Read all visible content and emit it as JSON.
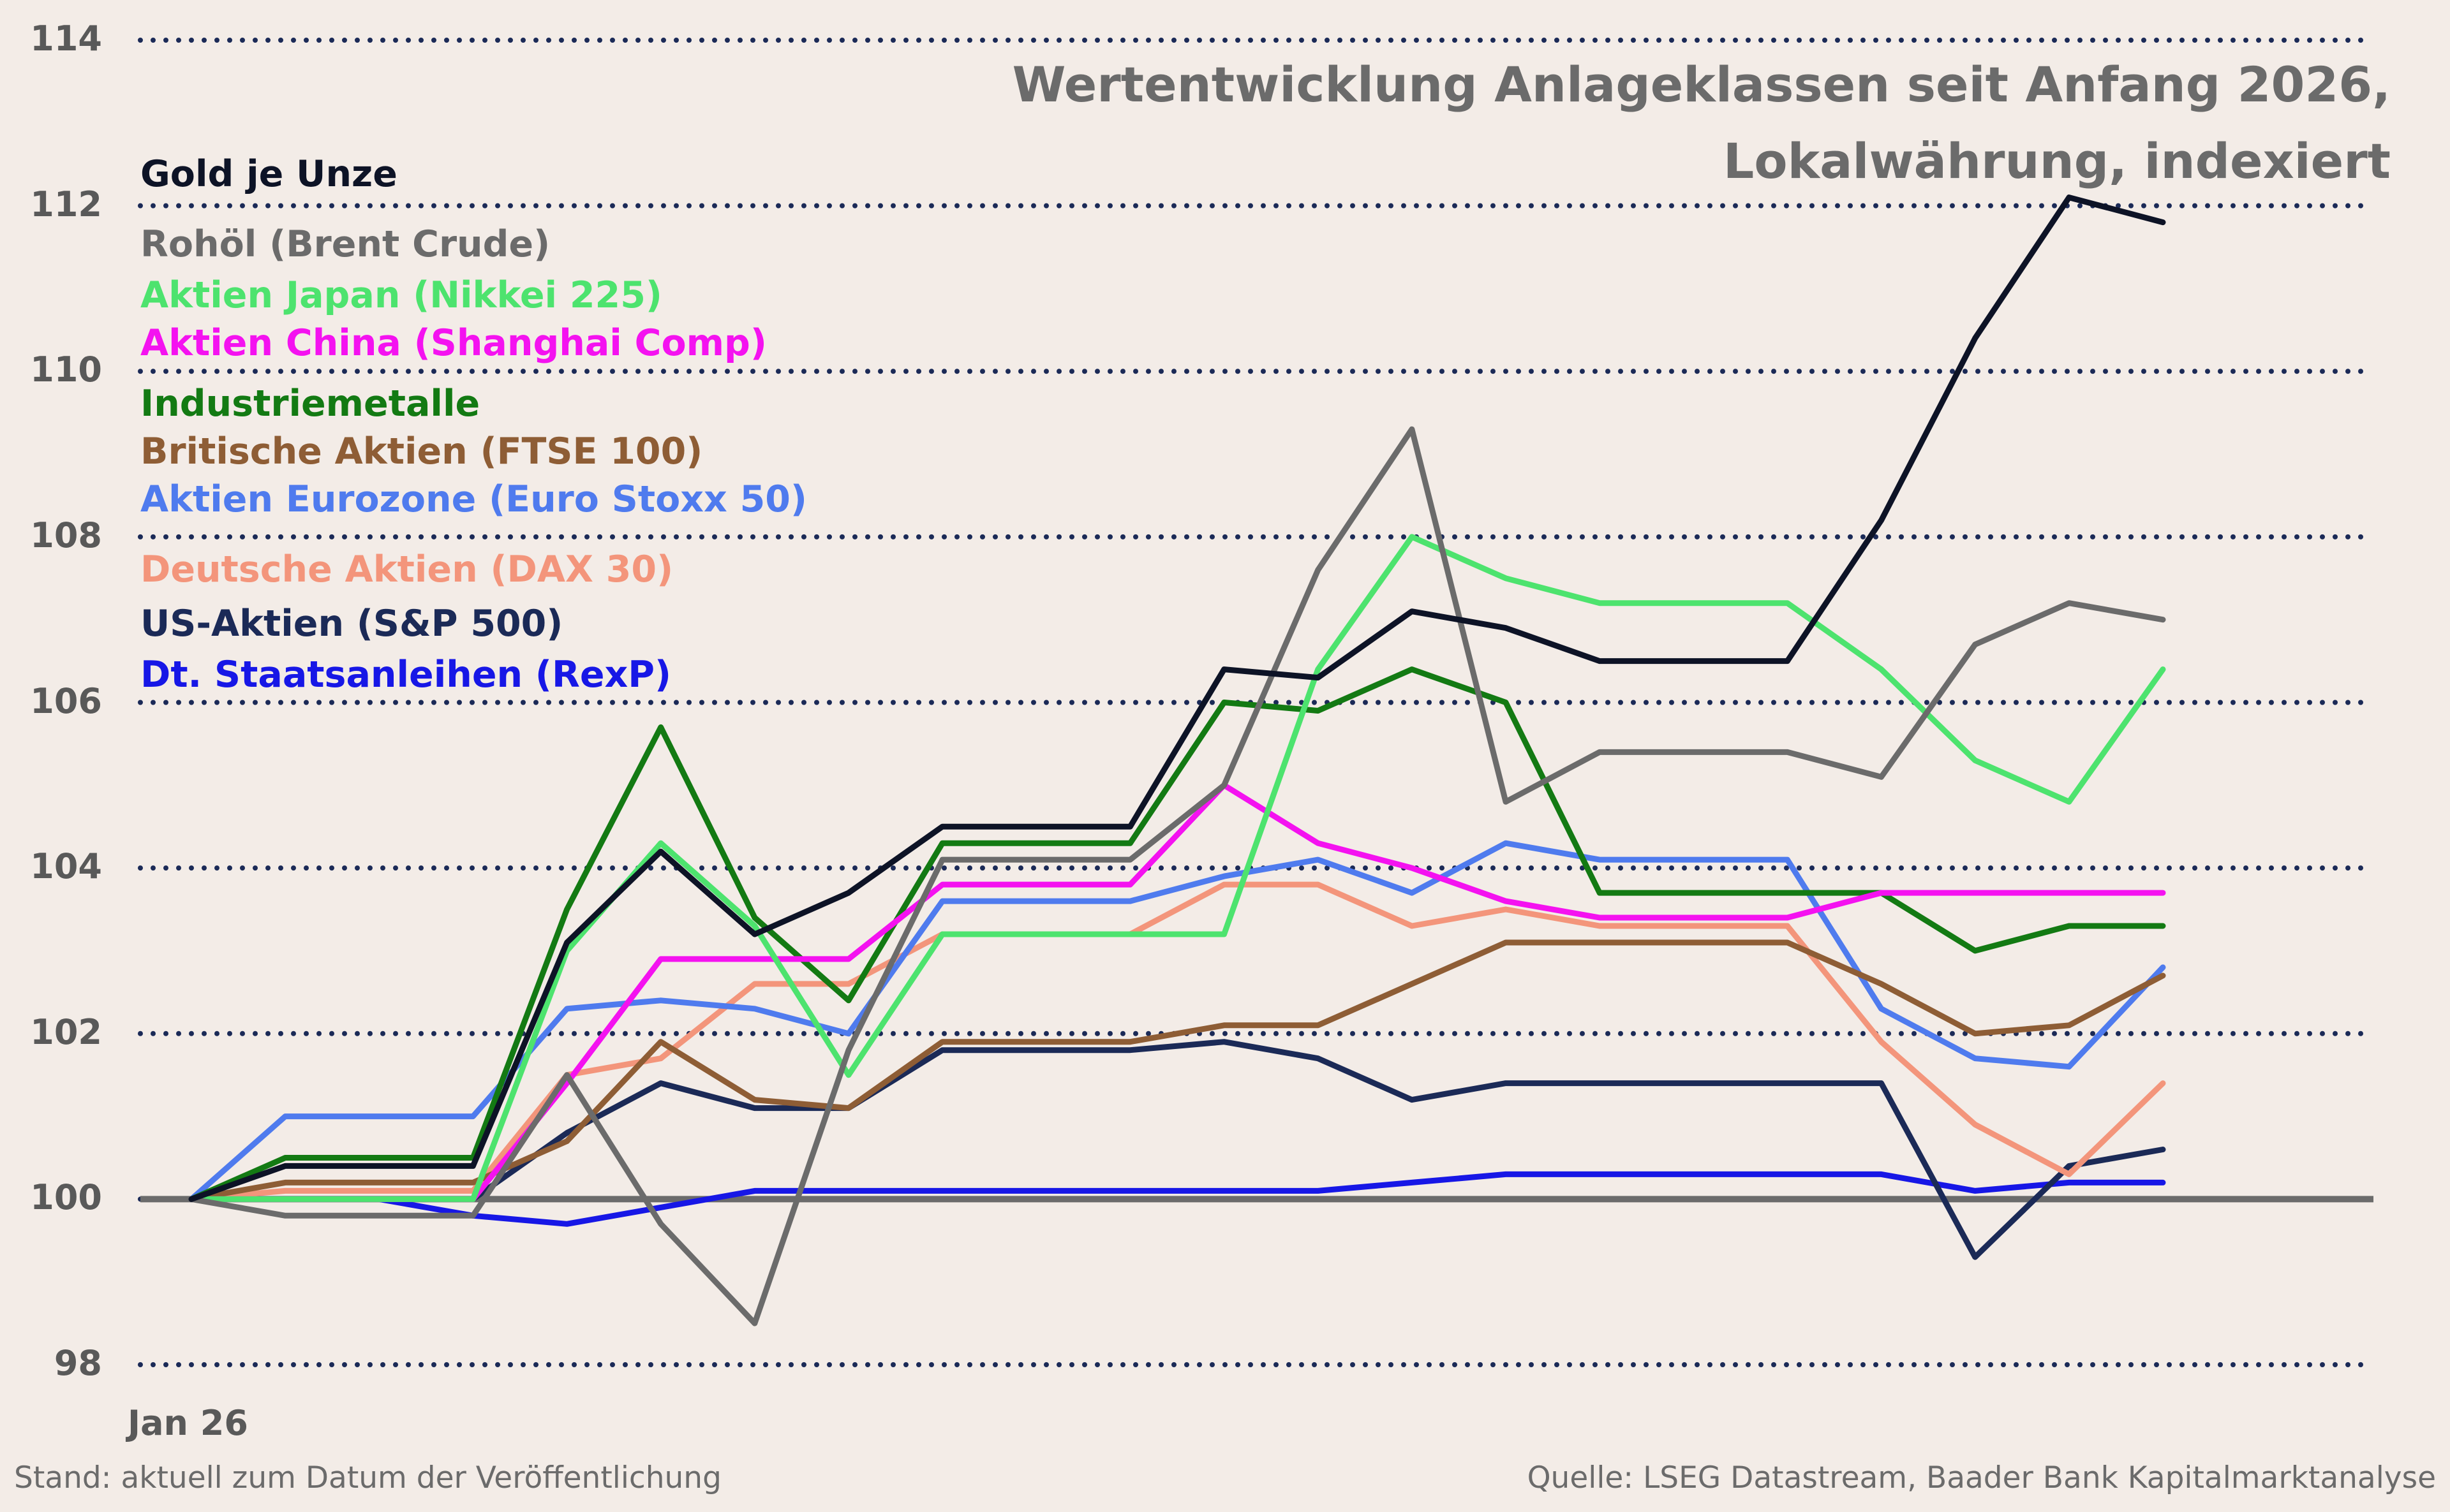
{
  "chart_data": {
    "type": "line",
    "title": "Wertentwicklung Anlageklassen seit Anfang 2026,",
    "subtitle": "Lokalwährung, indexiert",
    "xlabel": "",
    "ylabel": "",
    "x_tick_label": "Jan 26",
    "ylim": [
      98,
      114
    ],
    "yticks": [
      98,
      100,
      102,
      104,
      106,
      108,
      110,
      112,
      114
    ],
    "grid": true,
    "legend_position": "top-left",
    "baseline": 100,
    "x": [
      0,
      1,
      2,
      3,
      4,
      5,
      6,
      7,
      8,
      9,
      10,
      11,
      12,
      13,
      14,
      15,
      16,
      17,
      18,
      19,
      20,
      21
    ],
    "series": [
      {
        "name": "Gold je Unze",
        "color": "#0d1326",
        "values": [
          100,
          100.4,
          100.4,
          100.4,
          103.1,
          104.2,
          103.2,
          103.7,
          104.5,
          104.5,
          104.5,
          106.4,
          106.3,
          107.1,
          106.9,
          106.5,
          106.5,
          106.5,
          108.2,
          110.4,
          112.1,
          111.8
        ]
      },
      {
        "name": "Rohöl (Brent Crude)",
        "color": "#6b6b6b",
        "values": [
          100,
          99.8,
          99.8,
          99.8,
          101.5,
          99.7,
          98.5,
          101.8,
          104.1,
          104.1,
          104.1,
          105.0,
          107.6,
          109.3,
          104.8,
          105.4,
          105.4,
          105.4,
          105.1,
          106.7,
          107.2,
          107.0
        ]
      },
      {
        "name": "Aktien Japan (Nikkei 225)",
        "color": "#4de36e",
        "values": [
          100,
          100.0,
          100.0,
          100.0,
          103.0,
          104.3,
          103.3,
          101.5,
          103.2,
          103.2,
          103.2,
          103.2,
          106.4,
          108.0,
          107.5,
          107.2,
          107.2,
          107.2,
          106.4,
          105.3,
          104.8,
          106.4
        ]
      },
      {
        "name": "Aktien China (Shanghai Comp)",
        "color": "#f412f0",
        "values": [
          100,
          100.0,
          100.0,
          100.0,
          101.4,
          102.9,
          102.9,
          102.9,
          103.8,
          103.8,
          103.8,
          105.0,
          104.3,
          104.0,
          103.6,
          103.4,
          103.4,
          103.4,
          103.7,
          103.7,
          103.7,
          103.7
        ]
      },
      {
        "name": "Industriemetalle",
        "color": "#137a13",
        "values": [
          100,
          100.5,
          100.5,
          100.5,
          103.5,
          105.7,
          103.4,
          102.4,
          104.3,
          104.3,
          104.3,
          106.0,
          105.9,
          106.4,
          106.0,
          103.7,
          103.7,
          103.7,
          103.7,
          103.0,
          103.3,
          103.3
        ]
      },
      {
        "name": "Britische Aktien (FTSE 100)",
        "color": "#8e5d35",
        "values": [
          100,
          100.2,
          100.2,
          100.2,
          100.7,
          101.9,
          101.2,
          101.1,
          101.9,
          101.9,
          101.9,
          102.1,
          102.1,
          102.6,
          103.1,
          103.1,
          103.1,
          103.1,
          102.6,
          102.0,
          102.1,
          102.7
        ]
      },
      {
        "name": "Aktien Eurozone (Euro Stoxx 50)",
        "color": "#4f7bee",
        "values": [
          100,
          101.0,
          101.0,
          101.0,
          102.3,
          102.4,
          102.3,
          102.0,
          103.6,
          103.6,
          103.6,
          103.9,
          104.1,
          103.7,
          104.3,
          104.1,
          104.1,
          104.1,
          102.3,
          101.7,
          101.6,
          102.8
        ]
      },
      {
        "name": "Deutsche Aktien (DAX 30)",
        "color": "#f3957b",
        "values": [
          100,
          100.1,
          100.1,
          100.1,
          101.5,
          101.7,
          102.6,
          102.6,
          103.2,
          103.2,
          103.2,
          103.8,
          103.8,
          103.3,
          103.5,
          103.3,
          103.3,
          103.3,
          101.9,
          100.9,
          100.3,
          101.4
        ]
      },
      {
        "name": "US-Aktien (S&P 500)",
        "color": "#1b2a57",
        "values": [
          100,
          100.0,
          100.0,
          100.0,
          100.8,
          101.4,
          101.1,
          101.1,
          101.8,
          101.8,
          101.8,
          101.9,
          101.7,
          101.2,
          101.4,
          101.4,
          101.4,
          101.4,
          101.4,
          99.3,
          100.4,
          100.6
        ]
      },
      {
        "name": "Dt. Staatsanleihen (RexP)",
        "color": "#1717e6",
        "values": [
          100,
          100.0,
          100.0,
          99.8,
          99.7,
          99.9,
          100.1,
          100.1,
          100.1,
          100.1,
          100.1,
          100.1,
          100.1,
          100.2,
          100.3,
          100.3,
          100.3,
          100.3,
          100.3,
          100.1,
          100.2,
          100.2
        ]
      }
    ]
  },
  "footer": {
    "left": "Stand: aktuell zum Datum der Veröffentlichung",
    "right": "Quelle: LSEG Datastream, Baader Bank Kapitalmarktanalyse"
  },
  "colors": {
    "background": "#f3ece7",
    "grid": "#1b2a57",
    "baseline": "#6b6b6b",
    "title": "#6b6b6b",
    "axis_text": "#595959"
  }
}
